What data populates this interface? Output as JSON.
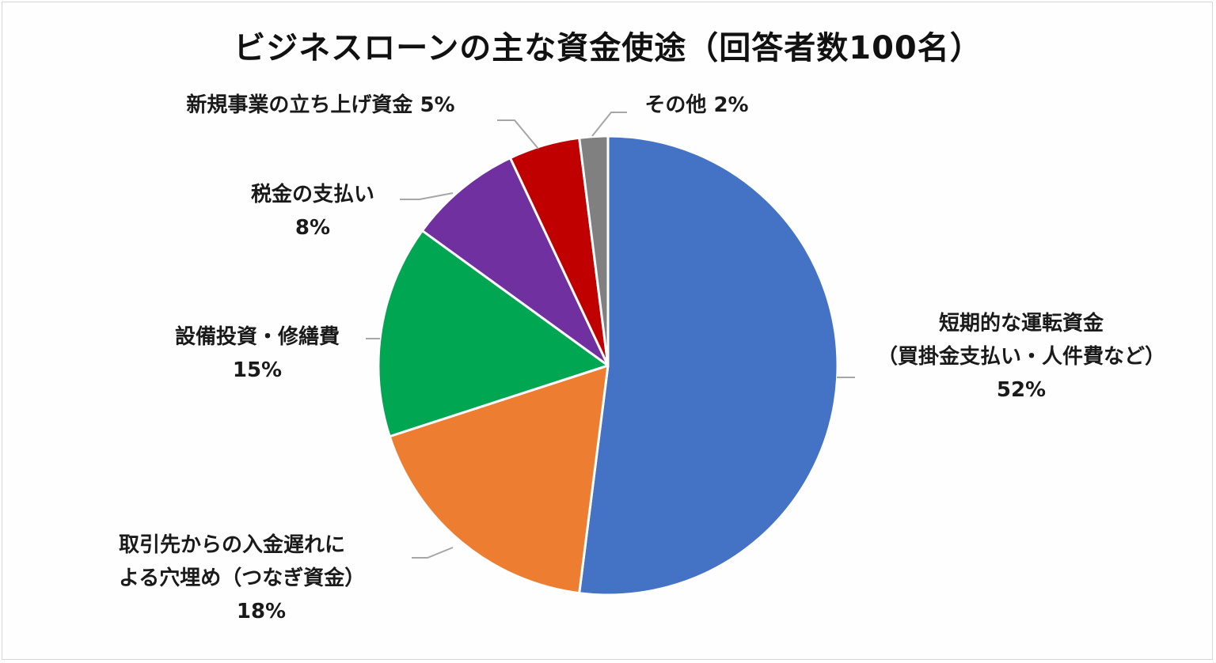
{
  "title": "ビジネスローンの主な資金使途（回答者数100名）",
  "chart_data": {
    "type": "pie",
    "title": "ビジネスローンの主な資金使途（回答者数100名）",
    "start_angle": "12 o'clock, clockwise",
    "slices": [
      {
        "label": "短期的な運転資金（買掛金支払い・人件費など）",
        "value": 52,
        "color": "#4472C4"
      },
      {
        "label": "取引先からの入金遅れによる穴埋め（つなぎ資金）",
        "value": 18,
        "color": "#ED7D31"
      },
      {
        "label": "設備投資・修繕費",
        "value": 15,
        "color": "#00A651"
      },
      {
        "label": "税金の支払い",
        "value": 8,
        "color": "#7030A0"
      },
      {
        "label": "新規事業の立ち上げ資金",
        "value": 5,
        "color": "#C00000"
      },
      {
        "label": "その他",
        "value": 2,
        "color": "#808080"
      }
    ],
    "categories": [
      "短期的な運転資金（買掛金支払い・人件費など）",
      "取引先からの入金遅れによる穴埋め（つなぎ資金）",
      "設備投資・修繕費",
      "税金の支払い",
      "新規事業の立ち上げ資金",
      "その他"
    ],
    "values": [
      52,
      18,
      15,
      8,
      5,
      2
    ],
    "unit": "%"
  },
  "labels": {
    "working": {
      "line1": "短期的な運転資金",
      "line2": "（買掛金支払い・人件費など）",
      "pct": "52%"
    },
    "bridge": {
      "line1": "取引先からの入金遅れに",
      "line2": "よる穴埋め（つなぎ資金）",
      "pct": "18%"
    },
    "equipment": {
      "line1": "設備投資・修繕費",
      "pct": "15%"
    },
    "tax": {
      "line1": "税金の支払い",
      "pct": "8%"
    },
    "newbiz": {
      "line1": "新規事業の立ち上げ資金 5%"
    },
    "other": {
      "line1": "その他 2%"
    }
  }
}
